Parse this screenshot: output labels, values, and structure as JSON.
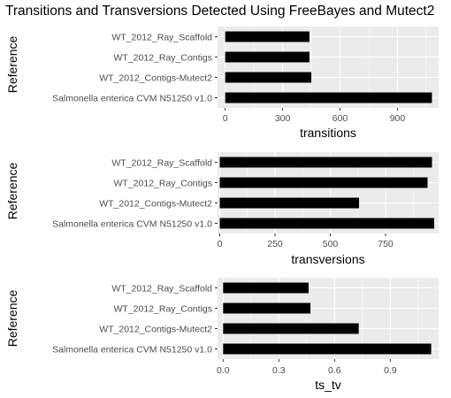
{
  "title": "Transitions and Transversions Detected Using FreeBayes and Mutect2",
  "colors": {
    "panel_background": "#ebebeb",
    "grid_major": "#ffffff",
    "bar_fill": "#000000",
    "tick_text": "#4d4d4d"
  },
  "chart_data": [
    {
      "type": "bar",
      "orientation": "horizontal",
      "categories": [
        "WT_2012_Ray_Scaffold",
        "WT_2012_Ray_Contigs",
        "WT_2012_Contigs-Mutect2",
        "Salmonella enterica CVM N51250 v1.0"
      ],
      "values": [
        440,
        440,
        450,
        1080
      ],
      "xlabel": "transitions",
      "ylabel": "Reference",
      "xlim": [
        -40,
        1115
      ],
      "ticks": [
        0,
        300,
        600,
        900
      ],
      "tick_labels": [
        "0",
        "300",
        "600",
        "900"
      ],
      "grid": true
    },
    {
      "type": "bar",
      "orientation": "horizontal",
      "categories": [
        "WT_2012_Ray_Scaffold",
        "WT_2012_Ray_Contigs",
        "WT_2012_Contigs-Mutect2",
        "Salmonella enterica CVM N51250 v1.0"
      ],
      "values": [
        960,
        940,
        630,
        970
      ],
      "xlabel": "transversions",
      "ylabel": "Reference",
      "xlim": [
        -10,
        990
      ],
      "ticks": [
        0,
        250,
        500,
        750
      ],
      "tick_labels": [
        "0",
        "250",
        "500",
        "750"
      ],
      "grid": true
    },
    {
      "type": "bar",
      "orientation": "horizontal",
      "categories": [
        "WT_2012_Ray_Scaffold",
        "WT_2012_Ray_Contigs",
        "WT_2012_Contigs-Mutect2",
        "Salmonella enterica CVM N51250 v1.0"
      ],
      "values": [
        0.46,
        0.47,
        0.73,
        1.12
      ],
      "xlabel": "ts_tv",
      "ylabel": "Reference",
      "xlim": [
        -0.03,
        1.16
      ],
      "ticks": [
        0.0,
        0.3,
        0.6,
        0.9
      ],
      "tick_labels": [
        "0.0",
        "0.3",
        "0.6",
        "0.9"
      ],
      "grid": true
    }
  ]
}
